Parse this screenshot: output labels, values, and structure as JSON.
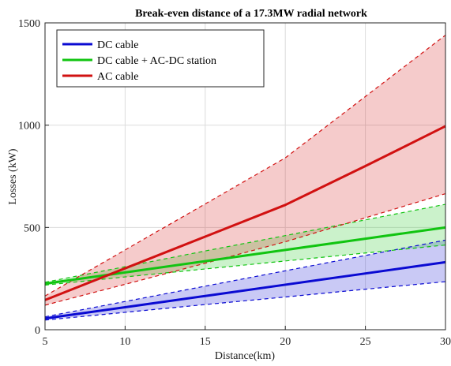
{
  "chart_data": {
    "type": "line",
    "title": "Break-even distance of a 17.3MW radial network",
    "xlabel": "Distance(km)",
    "ylabel": "Losses (kW)",
    "xlim": [
      5,
      30
    ],
    "ylim": [
      0,
      1500
    ],
    "xticks": [
      5,
      10,
      15,
      20,
      25,
      30
    ],
    "yticks": [
      0,
      500,
      1000,
      1500
    ],
    "grid": true,
    "legend_position": "top-left",
    "series": [
      {
        "name": "DC cable",
        "color": "#0a0ad2",
        "x": [
          5,
          10,
          15,
          20,
          25,
          30
        ],
        "values": [
          55,
          110,
          165,
          220,
          275,
          330
        ],
        "lower": [
          47,
          85,
          123,
          160,
          198,
          235
        ],
        "upper": [
          63,
          138,
          213,
          288,
          363,
          438
        ]
      },
      {
        "name": "DC cable + AC-DC station",
        "color": "#11c411",
        "x": [
          5,
          10,
          15,
          20,
          25,
          30
        ],
        "values": [
          225,
          280,
          335,
          390,
          445,
          500
        ],
        "lower": [
          218,
          258,
          297,
          336,
          375,
          414
        ],
        "upper": [
          232,
          308,
          385,
          460,
          537,
          613
        ]
      },
      {
        "name": "AC cable",
        "color": "#d11111",
        "x": [
          5,
          10,
          15,
          20,
          25,
          30
        ],
        "values": [
          145,
          300,
          455,
          610,
          800,
          995
        ],
        "lower": [
          120,
          222,
          325,
          430,
          547,
          665
        ],
        "upper": [
          165,
          390,
          615,
          840,
          1140,
          1440
        ]
      }
    ]
  }
}
